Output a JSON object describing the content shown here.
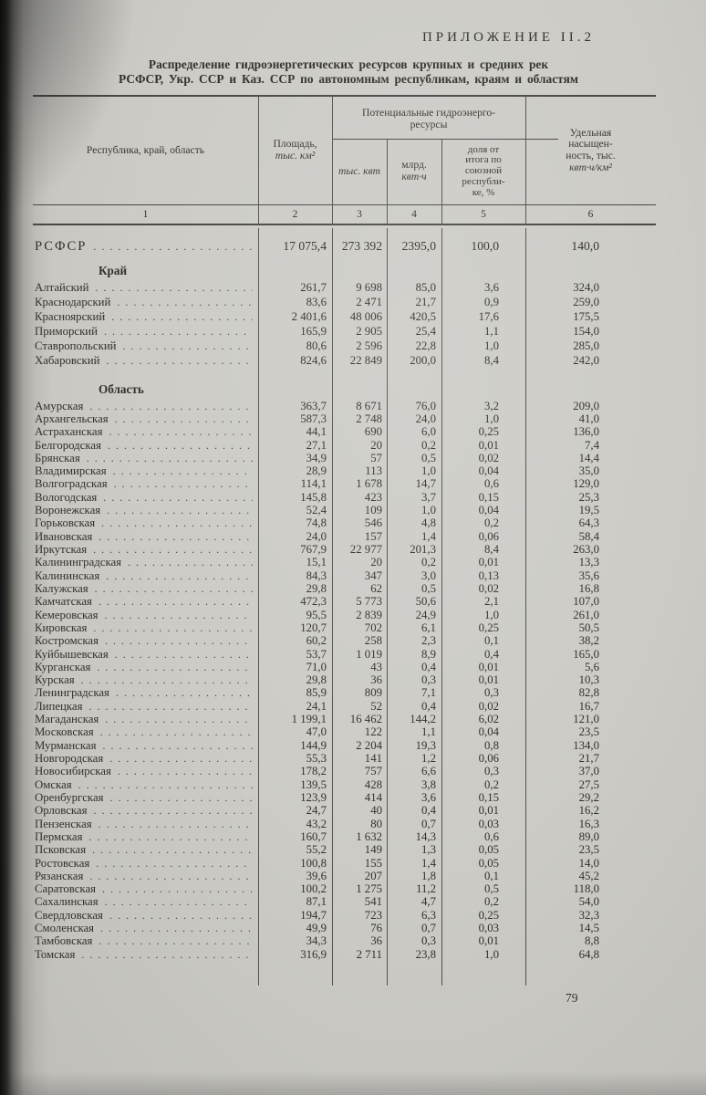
{
  "page": {
    "appendix_label": "ПРИЛОЖЕНИЕ II.2",
    "title_line1": "Распределение гидроэнергетических ресурсов крупных и средних рек",
    "title_line2": "РСФСР, Укр. ССР и Каз. ССР по автономным республикам, краям и областям",
    "page_number": "79"
  },
  "table": {
    "col1_header": "Республика, край, область",
    "col2_header_line1": "Площадь,",
    "col2_header_line2": "тыс. км²",
    "group_header_line1": "Потенциальные гидроэнерго-",
    "group_header_line2": "ресурсы",
    "col3_header": "тыс. квт",
    "col4_header_line1": "млрд.",
    "col4_header_line2": "квт·ч",
    "col5_header_lines": [
      "доля от",
      "итога по",
      "союзной",
      "республи-",
      "ке, %"
    ],
    "col6_header_lines": [
      "Удельная",
      "насыщен-",
      "ность, тыс.",
      "квт·ч/км²"
    ],
    "column_numbers": [
      "1",
      "2",
      "3",
      "4",
      "5",
      "6"
    ],
    "total_row": {
      "name": "РСФСР",
      "values": [
        "17 075,4",
        "273 392",
        "2395,0",
        "100,0",
        "140,0"
      ]
    },
    "sections": [
      {
        "heading": "Край",
        "group": "g-kray",
        "rows": [
          {
            "name": "Алтайский",
            "values": [
              "261,7",
              "9 698",
              "85,0",
              "3,6",
              "324,0"
            ]
          },
          {
            "name": "Краснодарский",
            "values": [
              "83,6",
              "2 471",
              "21,7",
              "0,9",
              "259,0"
            ]
          },
          {
            "name": "Красноярский",
            "values": [
              "2 401,6",
              "48 006",
              "420,5",
              "17,6",
              "175,5"
            ]
          },
          {
            "name": "Приморский",
            "values": [
              "165,9",
              "2 905",
              "25,4",
              "1,1",
              "154,0"
            ]
          },
          {
            "name": "Ставропольский",
            "values": [
              "80,6",
              "2 596",
              "22,8",
              "1,0",
              "285,0"
            ]
          },
          {
            "name": "Хабаровский",
            "values": [
              "824,6",
              "22 849",
              "200,0",
              "8,4",
              "242,0"
            ]
          }
        ]
      },
      {
        "heading": "Область",
        "group": "g-obl",
        "rows": [
          {
            "name": "Амурская",
            "values": [
              "363,7",
              "8 671",
              "76,0",
              "3,2",
              "209,0"
            ]
          },
          {
            "name": "Архангельская",
            "values": [
              "587,3",
              "2 748",
              "24,0",
              "1,0",
              "41,0"
            ]
          },
          {
            "name": "Астраханская",
            "values": [
              "44,1",
              "690",
              "6,0",
              "0,25",
              "136,0"
            ]
          },
          {
            "name": "Белгородская",
            "values": [
              "27,1",
              "20",
              "0,2",
              "0,01",
              "7,4"
            ]
          },
          {
            "name": "Брянская",
            "values": [
              "34,9",
              "57",
              "0,5",
              "0,02",
              "14,4"
            ]
          },
          {
            "name": "Владимирская",
            "values": [
              "28,9",
              "113",
              "1,0",
              "0,04",
              "35,0"
            ]
          },
          {
            "name": "Волгоградская",
            "values": [
              "114,1",
              "1 678",
              "14,7",
              "0,6",
              "129,0"
            ]
          },
          {
            "name": "Вологодская",
            "values": [
              "145,8",
              "423",
              "3,7",
              "0,15",
              "25,3"
            ]
          },
          {
            "name": "Воронежская",
            "values": [
              "52,4",
              "109",
              "1,0",
              "0,04",
              "19,5"
            ]
          },
          {
            "name": "Горьковская",
            "values": [
              "74,8",
              "546",
              "4,8",
              "0,2",
              "64,3"
            ]
          },
          {
            "name": "Ивановская",
            "values": [
              "24,0",
              "157",
              "1,4",
              "0,06",
              "58,4"
            ]
          },
          {
            "name": "Иркутская",
            "values": [
              "767,9",
              "22 977",
              "201,3",
              "8,4",
              "263,0"
            ]
          },
          {
            "name": "Калининградская",
            "values": [
              "15,1",
              "20",
              "0,2",
              "0,01",
              "13,3"
            ]
          },
          {
            "name": "Калининская",
            "values": [
              "84,3",
              "347",
              "3,0",
              "0,13",
              "35,6"
            ]
          },
          {
            "name": "Калужская",
            "values": [
              "29,8",
              "62",
              "0,5",
              "0,02",
              "16,8"
            ]
          },
          {
            "name": "Камчатская",
            "values": [
              "472,3",
              "5 773",
              "50,6",
              "2,1",
              "107,0"
            ]
          },
          {
            "name": "Кемеровская",
            "values": [
              "95,5",
              "2 839",
              "24,9",
              "1,0",
              "261,0"
            ]
          },
          {
            "name": "Кировская",
            "values": [
              "120,7",
              "702",
              "6,1",
              "0,25",
              "50,5"
            ]
          },
          {
            "name": "Костромская",
            "values": [
              "60,2",
              "258",
              "2,3",
              "0,1",
              "38,2"
            ]
          },
          {
            "name": "Куйбышевская",
            "values": [
              "53,7",
              "1 019",
              "8,9",
              "0,4",
              "165,0"
            ]
          },
          {
            "name": "Курганская",
            "values": [
              "71,0",
              "43",
              "0,4",
              "0,01",
              "5,6"
            ]
          },
          {
            "name": "Курская",
            "values": [
              "29,8",
              "36",
              "0,3",
              "0,01",
              "10,3"
            ]
          },
          {
            "name": "Ленинградская",
            "values": [
              "85,9",
              "809",
              "7,1",
              "0,3",
              "82,8"
            ]
          },
          {
            "name": "Липецкая",
            "values": [
              "24,1",
              "52",
              "0,4",
              "0,02",
              "16,7"
            ]
          },
          {
            "name": "Магаданская",
            "values": [
              "1 199,1",
              "16 462",
              "144,2",
              "6,02",
              "121,0"
            ]
          },
          {
            "name": "Московская",
            "values": [
              "47,0",
              "122",
              "1,1",
              "0,04",
              "23,5"
            ]
          },
          {
            "name": "Мурманская",
            "values": [
              "144,9",
              "2 204",
              "19,3",
              "0,8",
              "134,0"
            ]
          },
          {
            "name": "Новгородская",
            "values": [
              "55,3",
              "141",
              "1,2",
              "0,06",
              "21,7"
            ]
          },
          {
            "name": "Новосибирская",
            "values": [
              "178,2",
              "757",
              "6,6",
              "0,3",
              "37,0"
            ]
          },
          {
            "name": "Омская",
            "values": [
              "139,5",
              "428",
              "3,8",
              "0,2",
              "27,5"
            ]
          },
          {
            "name": "Оренбургская",
            "values": [
              "123,9",
              "414",
              "3,6",
              "0,15",
              "29,2"
            ]
          },
          {
            "name": "Орловская",
            "values": [
              "24,7",
              "40",
              "0,4",
              "0,01",
              "16,2"
            ]
          },
          {
            "name": "Пензенская",
            "values": [
              "43,2",
              "80",
              "0,7",
              "0,03",
              "16,3"
            ]
          },
          {
            "name": "Пермская",
            "values": [
              "160,7",
              "1 632",
              "14,3",
              "0,6",
              "89,0"
            ]
          },
          {
            "name": "Псковская",
            "values": [
              "55,2",
              "149",
              "1,3",
              "0,05",
              "23,5"
            ]
          },
          {
            "name": "Ростовская",
            "values": [
              "100,8",
              "155",
              "1,4",
              "0,05",
              "14,0"
            ]
          },
          {
            "name": "Рязанская",
            "values": [
              "39,6",
              "207",
              "1,8",
              "0,1",
              "45,2"
            ]
          },
          {
            "name": "Саратовская",
            "values": [
              "100,2",
              "1 275",
              "11,2",
              "0,5",
              "118,0"
            ]
          },
          {
            "name": "Сахалинская",
            "values": [
              "87,1",
              "541",
              "4,7",
              "0,2",
              "54,0"
            ]
          },
          {
            "name": "Свердловская",
            "values": [
              "194,7",
              "723",
              "6,3",
              "0,25",
              "32,3"
            ]
          },
          {
            "name": "Смоленская",
            "values": [
              "49,9",
              "76",
              "0,7",
              "0,03",
              "14,5"
            ]
          },
          {
            "name": "Тамбовская",
            "values": [
              "34,3",
              "36",
              "0,3",
              "0,01",
              "8,8"
            ]
          },
          {
            "name": "Томская",
            "values": [
              "316,9",
              "2 711",
              "23,8",
              "1,0",
              "64,8"
            ]
          }
        ]
      }
    ]
  }
}
